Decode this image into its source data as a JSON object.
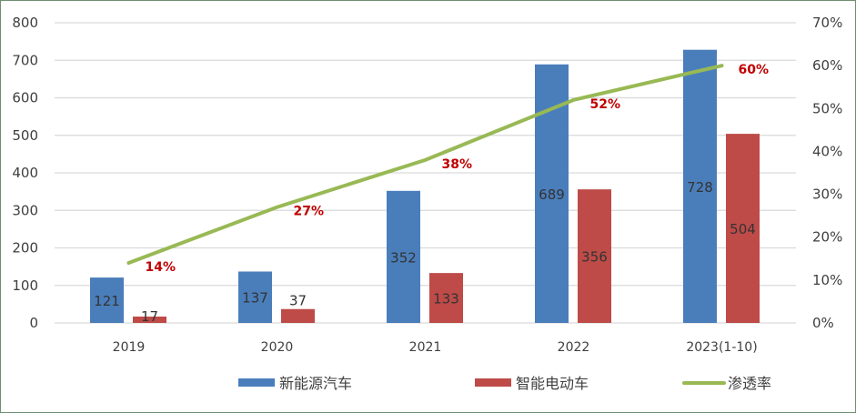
{
  "chart_data": {
    "type": "bar+line",
    "categories": [
      "2019",
      "2020",
      "2021",
      "2022",
      "2023(1-10)"
    ],
    "series": [
      {
        "name": "新能源汽车",
        "type": "bar",
        "axis": "left",
        "color": "#4a7ebb",
        "values": [
          121,
          137,
          352,
          689,
          728
        ]
      },
      {
        "name": "智能电动车",
        "type": "bar",
        "axis": "left",
        "color": "#be4b48",
        "values": [
          17,
          37,
          133,
          356,
          504
        ]
      },
      {
        "name": "渗透率",
        "type": "line",
        "axis": "right",
        "color": "#98b954",
        "values": [
          14,
          27,
          38,
          52,
          60
        ],
        "labels": [
          "14%",
          "27%",
          "38%",
          "52%",
          "60%"
        ],
        "label_color": "#c00000"
      }
    ],
    "y_left": {
      "range": [
        0,
        800
      ],
      "ticks": [
        "0",
        "100",
        "200",
        "300",
        "400",
        "500",
        "600",
        "700",
        "800"
      ]
    },
    "y_right": {
      "range": [
        0,
        70
      ],
      "ticks": [
        "0%",
        "10%",
        "20%",
        "30%",
        "40%",
        "50%",
        "60%",
        "70%"
      ]
    },
    "grid": true,
    "legend": "bottom"
  }
}
